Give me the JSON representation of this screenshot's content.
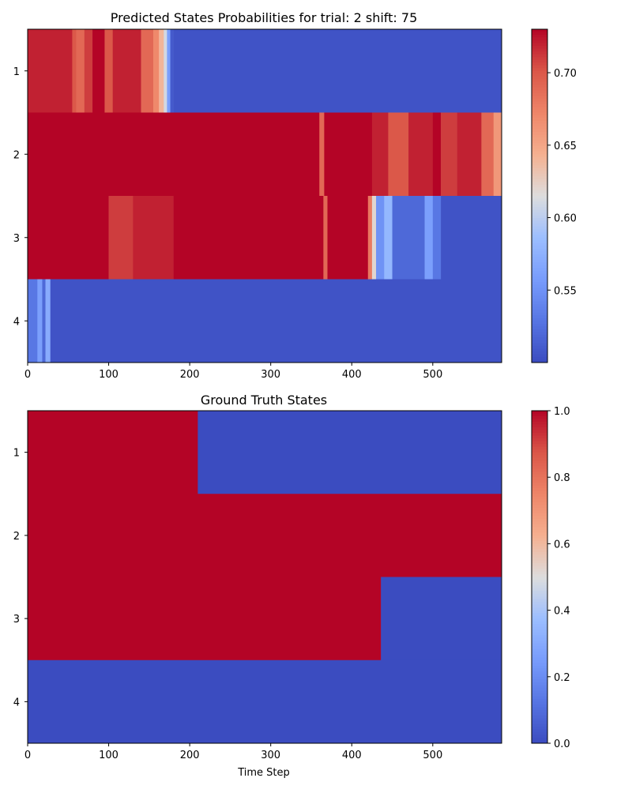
{
  "chart_data": [
    {
      "type": "heatmap",
      "title": "Predicted States Probabilities for trial: 2 shift: 75",
      "xlabel": "",
      "ylabel": "",
      "xlim": [
        0,
        585
      ],
      "x_ticks": [
        0,
        100,
        200,
        300,
        400,
        500
      ],
      "y_categories": [
        "1",
        "2",
        "3",
        "4"
      ],
      "colormap": "coolwarm",
      "color_range": [
        0.5,
        0.73
      ],
      "colorbar_ticks": [
        "0.55",
        "0.60",
        "0.65",
        "0.70"
      ],
      "colorbar_tick_values": [
        0.55,
        0.6,
        0.65,
        0.7
      ],
      "rows": [
        {
          "state": "1",
          "segments": [
            {
              "start": 0,
              "end": 55,
              "value": 0.72
            },
            {
              "start": 55,
              "end": 60,
              "value": 0.7
            },
            {
              "start": 60,
              "end": 70,
              "value": 0.69
            },
            {
              "start": 70,
              "end": 80,
              "value": 0.71
            },
            {
              "start": 80,
              "end": 95,
              "value": 0.73
            },
            {
              "start": 95,
              "end": 105,
              "value": 0.7
            },
            {
              "start": 105,
              "end": 140,
              "value": 0.72
            },
            {
              "start": 140,
              "end": 155,
              "value": 0.69
            },
            {
              "start": 155,
              "end": 162,
              "value": 0.67
            },
            {
              "start": 162,
              "end": 168,
              "value": 0.64
            },
            {
              "start": 168,
              "end": 172,
              "value": 0.61
            },
            {
              "start": 172,
              "end": 176,
              "value": 0.56
            },
            {
              "start": 176,
              "end": 180,
              "value": 0.51
            },
            {
              "start": 180,
              "end": 585,
              "value": 0.505
            }
          ]
        },
        {
          "state": "2",
          "segments": [
            {
              "start": 0,
              "end": 360,
              "value": 0.73
            },
            {
              "start": 360,
              "end": 366,
              "value": 0.69
            },
            {
              "start": 366,
              "end": 425,
              "value": 0.73
            },
            {
              "start": 425,
              "end": 445,
              "value": 0.72
            },
            {
              "start": 445,
              "end": 470,
              "value": 0.7
            },
            {
              "start": 470,
              "end": 500,
              "value": 0.72
            },
            {
              "start": 500,
              "end": 510,
              "value": 0.73
            },
            {
              "start": 510,
              "end": 530,
              "value": 0.71
            },
            {
              "start": 530,
              "end": 560,
              "value": 0.72
            },
            {
              "start": 560,
              "end": 575,
              "value": 0.69
            },
            {
              "start": 575,
              "end": 585,
              "value": 0.66
            }
          ]
        },
        {
          "state": "3",
          "segments": [
            {
              "start": 0,
              "end": 100,
              "value": 0.73
            },
            {
              "start": 100,
              "end": 130,
              "value": 0.71
            },
            {
              "start": 130,
              "end": 180,
              "value": 0.72
            },
            {
              "start": 180,
              "end": 365,
              "value": 0.73
            },
            {
              "start": 365,
              "end": 370,
              "value": 0.69
            },
            {
              "start": 370,
              "end": 420,
              "value": 0.73
            },
            {
              "start": 420,
              "end": 425,
              "value": 0.68
            },
            {
              "start": 425,
              "end": 430,
              "value": 0.62
            },
            {
              "start": 430,
              "end": 440,
              "value": 0.55
            },
            {
              "start": 440,
              "end": 450,
              "value": 0.58
            },
            {
              "start": 450,
              "end": 490,
              "value": 0.52
            },
            {
              "start": 490,
              "end": 500,
              "value": 0.56
            },
            {
              "start": 500,
              "end": 510,
              "value": 0.53
            },
            {
              "start": 510,
              "end": 585,
              "value": 0.505
            }
          ]
        },
        {
          "state": "4",
          "segments": [
            {
              "start": 0,
              "end": 12,
              "value": 0.53
            },
            {
              "start": 12,
              "end": 18,
              "value": 0.56
            },
            {
              "start": 18,
              "end": 22,
              "value": 0.52
            },
            {
              "start": 22,
              "end": 28,
              "value": 0.57
            },
            {
              "start": 28,
              "end": 585,
              "value": 0.505
            }
          ]
        }
      ]
    },
    {
      "type": "heatmap",
      "title": "Ground Truth States",
      "xlabel": "Time Step",
      "ylabel": "",
      "xlim": [
        0,
        585
      ],
      "x_ticks": [
        0,
        100,
        200,
        300,
        400,
        500
      ],
      "y_categories": [
        "1",
        "2",
        "3",
        "4"
      ],
      "colormap": "coolwarm",
      "color_range": [
        0.0,
        1.0
      ],
      "colorbar_ticks": [
        "0.0",
        "0.2",
        "0.4",
        "0.6",
        "0.8",
        "1.0"
      ],
      "colorbar_tick_values": [
        0.0,
        0.2,
        0.4,
        0.6,
        0.8,
        1.0
      ],
      "rows": [
        {
          "state": "1",
          "segments": [
            {
              "start": 0,
              "end": 210,
              "value": 1.0
            },
            {
              "start": 210,
              "end": 585,
              "value": 0.0
            }
          ]
        },
        {
          "state": "2",
          "segments": [
            {
              "start": 0,
              "end": 585,
              "value": 1.0
            }
          ]
        },
        {
          "state": "3",
          "segments": [
            {
              "start": 0,
              "end": 436,
              "value": 1.0
            },
            {
              "start": 436,
              "end": 585,
              "value": 0.0
            }
          ]
        },
        {
          "state": "4",
          "segments": [
            {
              "start": 0,
              "end": 585,
              "value": 0.0
            }
          ]
        }
      ]
    }
  ]
}
